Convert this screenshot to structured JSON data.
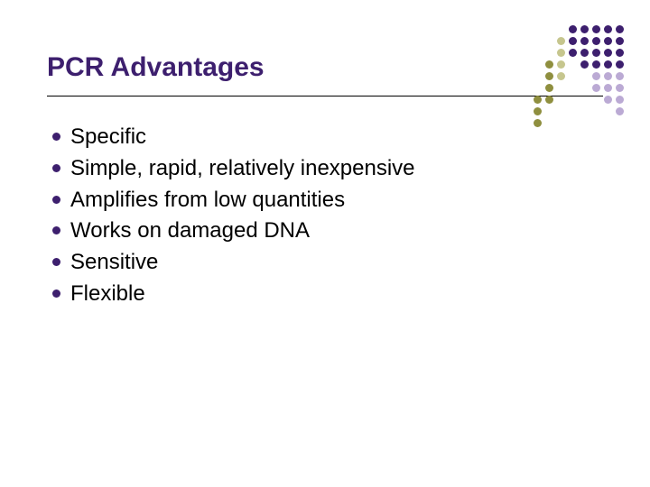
{
  "title": "PCR Advantages",
  "title_color": "#3d1f6e",
  "title_fontsize": 30,
  "divider_color": "#000000",
  "bullet_color": "#3d1f6e",
  "bullet_fontsize": 24,
  "bullets": [
    "Specific",
    "Simple, rapid, relatively inexpensive",
    "Amplifies from low quantities",
    "Works on damaged DNA",
    "Sensitive",
    "Flexible"
  ],
  "dot_grid": {
    "rows": 9,
    "cols": 8,
    "dot_size": 9,
    "gap": 3,
    "colors": {
      "dark_purple": "#3d1f6e",
      "olive": "#8f8f3f",
      "light_olive": "#c6c68e",
      "lavender": "#bbaad4",
      "empty": "transparent"
    },
    "pattern": [
      [
        "empty",
        "empty",
        "empty",
        "dark_purple",
        "dark_purple",
        "dark_purple",
        "dark_purple",
        "dark_purple"
      ],
      [
        "empty",
        "empty",
        "light_olive",
        "dark_purple",
        "dark_purple",
        "dark_purple",
        "dark_purple",
        "dark_purple"
      ],
      [
        "empty",
        "empty",
        "light_olive",
        "dark_purple",
        "dark_purple",
        "dark_purple",
        "dark_purple",
        "dark_purple"
      ],
      [
        "empty",
        "olive",
        "light_olive",
        "empty",
        "dark_purple",
        "dark_purple",
        "dark_purple",
        "dark_purple"
      ],
      [
        "empty",
        "olive",
        "light_olive",
        "empty",
        "empty",
        "lavender",
        "lavender",
        "lavender"
      ],
      [
        "empty",
        "olive",
        "empty",
        "empty",
        "empty",
        "lavender",
        "lavender",
        "lavender"
      ],
      [
        "olive",
        "olive",
        "empty",
        "empty",
        "empty",
        "empty",
        "lavender",
        "lavender"
      ],
      [
        "olive",
        "empty",
        "empty",
        "empty",
        "empty",
        "empty",
        "empty",
        "lavender"
      ],
      [
        "olive",
        "empty",
        "empty",
        "empty",
        "empty",
        "empty",
        "empty",
        "empty"
      ]
    ]
  },
  "background_color": "#ffffff"
}
